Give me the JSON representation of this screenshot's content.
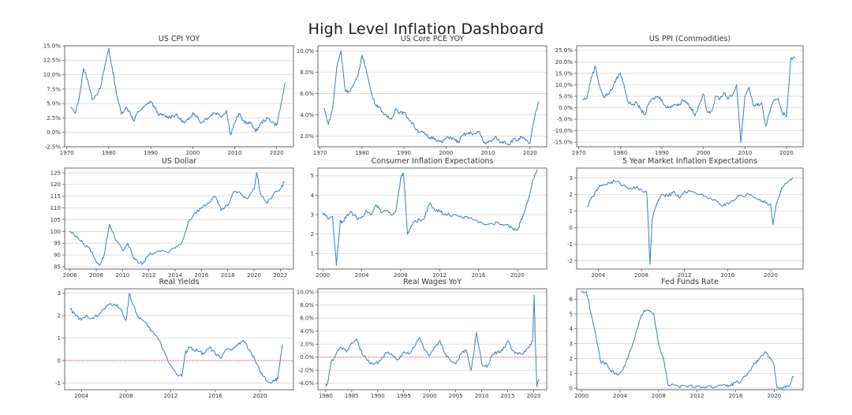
{
  "dashboard": {
    "title": "High Level Inflation Dashboard"
  },
  "colors": {
    "series": "#3b7fb6",
    "zero_line": "#e06060",
    "grid": "#d0d0d0",
    "frame": "#444444"
  },
  "chart_data": [
    {
      "type": "line",
      "title": "US CPI YOY",
      "x": [
        1971,
        1972,
        1973,
        1974,
        1975,
        1976,
        1977,
        1978,
        1979,
        1980,
        1981,
        1982,
        1983,
        1984,
        1985,
        1986,
        1987,
        1988,
        1989,
        1990,
        1991,
        1992,
        1993,
        1994,
        1995,
        1996,
        1997,
        1998,
        1999,
        2000,
        2001,
        2002,
        2003,
        2004,
        2005,
        2006,
        2007,
        2008,
        2009,
        2010,
        2011,
        2012,
        2013,
        2014,
        2015,
        2016,
        2017,
        2018,
        2019,
        2020,
        2021,
        2022
      ],
      "series": [
        {
          "values": [
            4.3,
            3.3,
            6.2,
            11.0,
            9.1,
            5.8,
            6.5,
            7.6,
            11.3,
            14.5,
            10.3,
            6.2,
            3.2,
            4.3,
            3.6,
            1.9,
            3.6,
            4.1,
            4.8,
            5.4,
            4.2,
            3.0,
            3.0,
            2.6,
            2.8,
            3.0,
            2.3,
            1.6,
            2.2,
            3.4,
            2.8,
            1.6,
            2.3,
            2.7,
            3.4,
            3.2,
            2.8,
            3.8,
            -0.4,
            1.6,
            3.2,
            2.1,
            1.5,
            1.6,
            0.1,
            1.3,
            2.1,
            2.4,
            1.8,
            1.2,
            4.7,
            8.5
          ]
        }
      ],
      "ylim": [
        -2.5,
        15
      ],
      "yticks": [
        "15.0%",
        "12.5%",
        "10.0%",
        "7.5%",
        "5.0%",
        "2.5%",
        "0.0%",
        "-2.5%"
      ],
      "xticks": [
        "1970",
        "1980",
        "1990",
        "2000",
        "2010",
        "2020"
      ],
      "grid": true
    },
    {
      "type": "line",
      "title": "US Core PCE YOY",
      "x": [
        1971,
        1972,
        1973,
        1974,
        1975,
        1976,
        1977,
        1978,
        1979,
        1980,
        1981,
        1982,
        1983,
        1984,
        1985,
        1986,
        1987,
        1988,
        1989,
        1990,
        1991,
        1992,
        1993,
        1994,
        1995,
        1996,
        1997,
        1998,
        1999,
        2000,
        2001,
        2002,
        2003,
        2004,
        2005,
        2006,
        2007,
        2008,
        2009,
        2010,
        2011,
        2012,
        2013,
        2014,
        2015,
        2016,
        2017,
        2018,
        2019,
        2020,
        2021,
        2022
      ],
      "series": [
        {
          "values": [
            4.6,
            3.1,
            4.6,
            8.5,
            10.0,
            6.3,
            6.2,
            6.8,
            7.6,
            9.6,
            8.3,
            6.4,
            5.1,
            4.8,
            4.2,
            3.8,
            3.6,
            4.6,
            4.2,
            4.2,
            3.7,
            3.2,
            2.6,
            2.4,
            2.2,
            1.8,
            1.9,
            1.6,
            1.4,
            1.8,
            1.9,
            1.7,
            1.4,
            2.1,
            2.2,
            2.3,
            2.2,
            2.4,
            1.4,
            1.4,
            1.6,
            1.9,
            1.4,
            1.5,
            1.2,
            1.7,
            1.6,
            1.9,
            1.6,
            1.3,
            3.5,
            5.2
          ]
        }
      ],
      "ylim": [
        1,
        10.5
      ],
      "yticks": [
        "10.0%",
        "8.0%",
        "6.0%",
        "4.0%",
        "2.0%"
      ],
      "xticks": [
        "1970",
        "1980",
        "1990",
        "2000",
        "2010",
        "2020"
      ],
      "grid": true
    },
    {
      "type": "line",
      "title": "US PPI (Commodities)",
      "x": [
        1971,
        1972,
        1973,
        1974,
        1975,
        1976,
        1977,
        1978,
        1979,
        1980,
        1981,
        1982,
        1983,
        1984,
        1985,
        1986,
        1987,
        1988,
        1989,
        1990,
        1991,
        1992,
        1993,
        1994,
        1995,
        1996,
        1997,
        1998,
        1999,
        2000,
        2001,
        2002,
        2003,
        2004,
        2005,
        2006,
        2007,
        2008,
        2009,
        2010,
        2011,
        2012,
        2013,
        2014,
        2015,
        2016,
        2017,
        2018,
        2019,
        2020,
        2021,
        2022
      ],
      "series": [
        {
          "values": [
            3.5,
            4.5,
            13.0,
            18.0,
            9.5,
            4.5,
            6.0,
            8.0,
            12.5,
            15.0,
            9.0,
            2.0,
            1.5,
            2.0,
            -1.0,
            -3.0,
            2.5,
            4.0,
            5.0,
            3.5,
            0.0,
            0.5,
            1.5,
            1.0,
            3.5,
            2.5,
            0.0,
            -3.5,
            1.0,
            6.0,
            -2.0,
            -1.5,
            5.0,
            4.0,
            6.5,
            4.0,
            5.5,
            10.0,
            -15.0,
            5.0,
            9.0,
            1.0,
            1.0,
            2.0,
            -8.0,
            -2.0,
            3.5,
            4.0,
            -2.0,
            -4.0,
            21.0,
            22.0
          ]
        }
      ],
      "ylim": [
        -17,
        27
      ],
      "yticks": [
        "25.0%",
        "20.0%",
        "15.0%",
        "10.0%",
        "5.0%",
        "0.0%",
        "-5.0%",
        "-10.0%",
        "-15.0%"
      ],
      "xticks": [
        "1970",
        "1980",
        "1990",
        "2000",
        "2010",
        "2020"
      ],
      "grid": true
    },
    {
      "type": "line",
      "title": "US Dollar",
      "x": [
        2006,
        2006.5,
        2007,
        2007.5,
        2008,
        2008.3,
        2008.6,
        2009,
        2009.5,
        2010,
        2010.4,
        2010.8,
        2011,
        2011.5,
        2012,
        2012.5,
        2013,
        2013.5,
        2014,
        2014.5,
        2015,
        2015.5,
        2016,
        2016.5,
        2017,
        2017.5,
        2018,
        2018.5,
        2019,
        2019.5,
        2020,
        2020.2,
        2020.5,
        2021,
        2021.5,
        2022,
        2022.3
      ],
      "series": [
        {
          "values": [
            100,
            98,
            95,
            93,
            87,
            86,
            90,
            103,
            96,
            92,
            95,
            89,
            88,
            86,
            90,
            91,
            92,
            91,
            93,
            95,
            104,
            108,
            110,
            112,
            115,
            109,
            111,
            117,
            116,
            114,
            118,
            125,
            116,
            112,
            116,
            118,
            121
          ]
        }
      ],
      "ylim": [
        84,
        127
      ],
      "yticks": [
        "125",
        "120",
        "115",
        "110",
        "105",
        "100",
        "95",
        "90",
        "85"
      ],
      "xticks": [
        "2006",
        "2008",
        "2010",
        "2012",
        "2014",
        "2016",
        "2018",
        "2020",
        "2022"
      ],
      "grid": true
    },
    {
      "type": "line",
      "title": "Consumer Inflation Expectations",
      "x": [
        2000,
        2000.5,
        2001,
        2001.4,
        2001.8,
        2002,
        2002.5,
        2003,
        2003.5,
        2004,
        2004.5,
        2005,
        2005.5,
        2006,
        2006.5,
        2007,
        2007.5,
        2008,
        2008.3,
        2008.7,
        2009,
        2009.5,
        2010,
        2010.5,
        2011,
        2011.5,
        2012,
        2012.5,
        2013,
        2014,
        2015,
        2016,
        2017,
        2018,
        2019,
        2019.5,
        2020,
        2020.3,
        2020.6,
        2021,
        2021.5,
        2022
      ],
      "series": [
        {
          "values": [
            3.1,
            2.8,
            2.9,
            0.4,
            2.7,
            2.6,
            3.0,
            3.1,
            2.8,
            2.9,
            3.2,
            3.0,
            3.5,
            3.1,
            3.2,
            3.0,
            3.2,
            4.9,
            5.1,
            2.0,
            2.3,
            2.7,
            2.7,
            2.9,
            3.6,
            3.2,
            3.2,
            3.0,
            3.0,
            2.9,
            2.8,
            2.6,
            2.5,
            2.6,
            2.5,
            2.3,
            2.2,
            2.6,
            3.0,
            3.6,
            4.6,
            5.3
          ]
        }
      ],
      "ylim": [
        0.2,
        5.4
      ],
      "yticks": [
        "5",
        "4",
        "3",
        "2",
        "1"
      ],
      "xticks": [
        "2000",
        "2004",
        "2008",
        "2012",
        "2016",
        "2020"
      ],
      "grid": true
    },
    {
      "type": "line",
      "title": "5 Year Market Inflation Expectations",
      "x": [
        2003,
        2003.5,
        2004,
        2004.5,
        2005,
        2005.5,
        2006,
        2006.5,
        2007,
        2007.5,
        2008,
        2008.5,
        2008.8,
        2009,
        2009.3,
        2009.6,
        2010,
        2010.5,
        2011,
        2011.5,
        2012,
        2013,
        2014,
        2015,
        2015.5,
        2016,
        2016.5,
        2017,
        2018,
        2019,
        2019.5,
        2020,
        2020.2,
        2020.5,
        2021,
        2021.5,
        2022
      ],
      "series": [
        {
          "values": [
            1.3,
            1.9,
            2.4,
            2.6,
            2.7,
            2.8,
            2.7,
            2.5,
            2.4,
            2.4,
            2.3,
            2.1,
            -2.2,
            0.5,
            1.2,
            1.7,
            2.0,
            1.9,
            2.2,
            1.8,
            2.2,
            2.1,
            1.9,
            1.6,
            1.3,
            1.5,
            1.6,
            1.9,
            2.0,
            1.7,
            1.5,
            1.4,
            0.2,
            1.4,
            2.4,
            2.7,
            3.0
          ]
        }
      ],
      "ylim": [
        -2.5,
        3.6
      ],
      "yticks": [
        "3",
        "2",
        "1",
        "0",
        "-1",
        "-2"
      ],
      "xticks": [
        "2004",
        "2008",
        "2012",
        "2016",
        "2020"
      ],
      "grid": true
    },
    {
      "type": "line",
      "title": "Real Yields",
      "x": [
        2003,
        2003.5,
        2004,
        2004.5,
        2005,
        2005.5,
        2006,
        2006.5,
        2007,
        2007.5,
        2008,
        2008.3,
        2008.6,
        2009,
        2009.5,
        2010,
        2010.5,
        2011,
        2011.5,
        2012,
        2012.5,
        2013,
        2013.3,
        2013.6,
        2014,
        2014.5,
        2015,
        2015.5,
        2016,
        2016.5,
        2017,
        2017.5,
        2018,
        2018.5,
        2019,
        2019.5,
        2020,
        2020.3,
        2020.6,
        2021,
        2021.3,
        2021.6,
        2022
      ],
      "series": [
        {
          "values": [
            2.3,
            2.0,
            1.8,
            2.0,
            1.9,
            2.0,
            2.3,
            2.5,
            2.5,
            2.3,
            1.8,
            3.0,
            2.5,
            2.0,
            1.8,
            1.5,
            1.2,
            0.9,
            0.3,
            -0.2,
            -0.6,
            -0.7,
            0.3,
            0.6,
            0.5,
            0.4,
            0.3,
            0.6,
            0.3,
            0.1,
            0.5,
            0.5,
            0.7,
            0.9,
            0.5,
            0.1,
            -0.5,
            -0.7,
            -0.9,
            -1.0,
            -0.9,
            -0.8,
            0.7
          ]
        }
      ],
      "ylim": [
        -1.3,
        3.2
      ],
      "yticks": [
        "3",
        "2",
        "1",
        "0",
        "-1"
      ],
      "xticks": [
        "2004",
        "2008",
        "2012",
        "2016",
        "2020"
      ],
      "hline": 0,
      "grid": true
    },
    {
      "type": "line",
      "title": "Real Wages YoY",
      "x": [
        1980,
        1980.5,
        1981,
        1982,
        1983,
        1984,
        1985,
        1986,
        1987,
        1988,
        1989,
        1990,
        1991,
        1992,
        1993,
        1994,
        1995,
        1996,
        1997,
        1998,
        1999,
        2000,
        2001,
        2002,
        2003,
        2004,
        2005,
        2006,
        2007,
        2008,
        2009,
        2010,
        2011,
        2012,
        2013,
        2014,
        2015,
        2016,
        2017,
        2018,
        2019,
        2019.8,
        2020.1,
        2020.3,
        2020.6,
        2021
      ],
      "series": [
        {
          "values": [
            -4.5,
            -3.5,
            -0.8,
            0.5,
            1.5,
            0.8,
            2.2,
            2.8,
            0.5,
            -0.5,
            -1.0,
            -1.0,
            0.0,
            0.8,
            0.2,
            -0.3,
            0.8,
            0.5,
            1.5,
            3.0,
            1.2,
            0.3,
            1.5,
            2.5,
            0.5,
            -0.5,
            -1.0,
            0.5,
            1.0,
            -2.0,
            3.8,
            -1.0,
            -1.5,
            0.3,
            0.8,
            1.0,
            2.5,
            1.0,
            0.5,
            0.5,
            1.5,
            2.5,
            9.5,
            2.5,
            -4.5,
            -3.5
          ]
        }
      ],
      "ylim": [
        -5,
        10.5
      ],
      "yticks": [
        "10.0%",
        "8.0%",
        "6.0%",
        "4.0%",
        "2.0%",
        "0.0%",
        "-2.0%",
        "-4.0%"
      ],
      "xticks": [
        "1980",
        "1985",
        "1990",
        "1995",
        "2000",
        "2005",
        "2010",
        "2015",
        "2020"
      ],
      "hline": 0,
      "grid": true
    },
    {
      "type": "line",
      "title": "Fed Funds Rate",
      "x": [
        2000,
        2000.5,
        2001,
        2001.5,
        2002,
        2002.5,
        2003,
        2003.5,
        2004,
        2004.5,
        2005,
        2005.5,
        2006,
        2006.5,
        2007,
        2007.5,
        2008,
        2008.5,
        2009,
        2010,
        2011,
        2012,
        2013,
        2014,
        2015,
        2015.5,
        2016,
        2016.5,
        2017,
        2017.5,
        2018,
        2018.5,
        2019,
        2019.5,
        2020,
        2020.3,
        2021,
        2021.5,
        2022
      ],
      "series": [
        {
          "values": [
            6.5,
            6.5,
            5.0,
            3.5,
            1.75,
            1.7,
            1.2,
            1.0,
            1.0,
            1.5,
            2.5,
            3.3,
            4.5,
            5.25,
            5.25,
            5.0,
            3.0,
            2.0,
            0.2,
            0.15,
            0.1,
            0.15,
            0.1,
            0.1,
            0.15,
            0.2,
            0.4,
            0.4,
            0.8,
            1.2,
            1.7,
            2.0,
            2.4,
            2.1,
            1.5,
            0.05,
            0.08,
            0.1,
            0.8
          ]
        }
      ],
      "ylim": [
        -0.1,
        6.7
      ],
      "yticks": [
        "6",
        "5",
        "4",
        "3",
        "2",
        "1",
        "0"
      ],
      "xticks": [
        "2000",
        "2004",
        "2008",
        "2012",
        "2016",
        "2020"
      ],
      "grid": true
    }
  ]
}
